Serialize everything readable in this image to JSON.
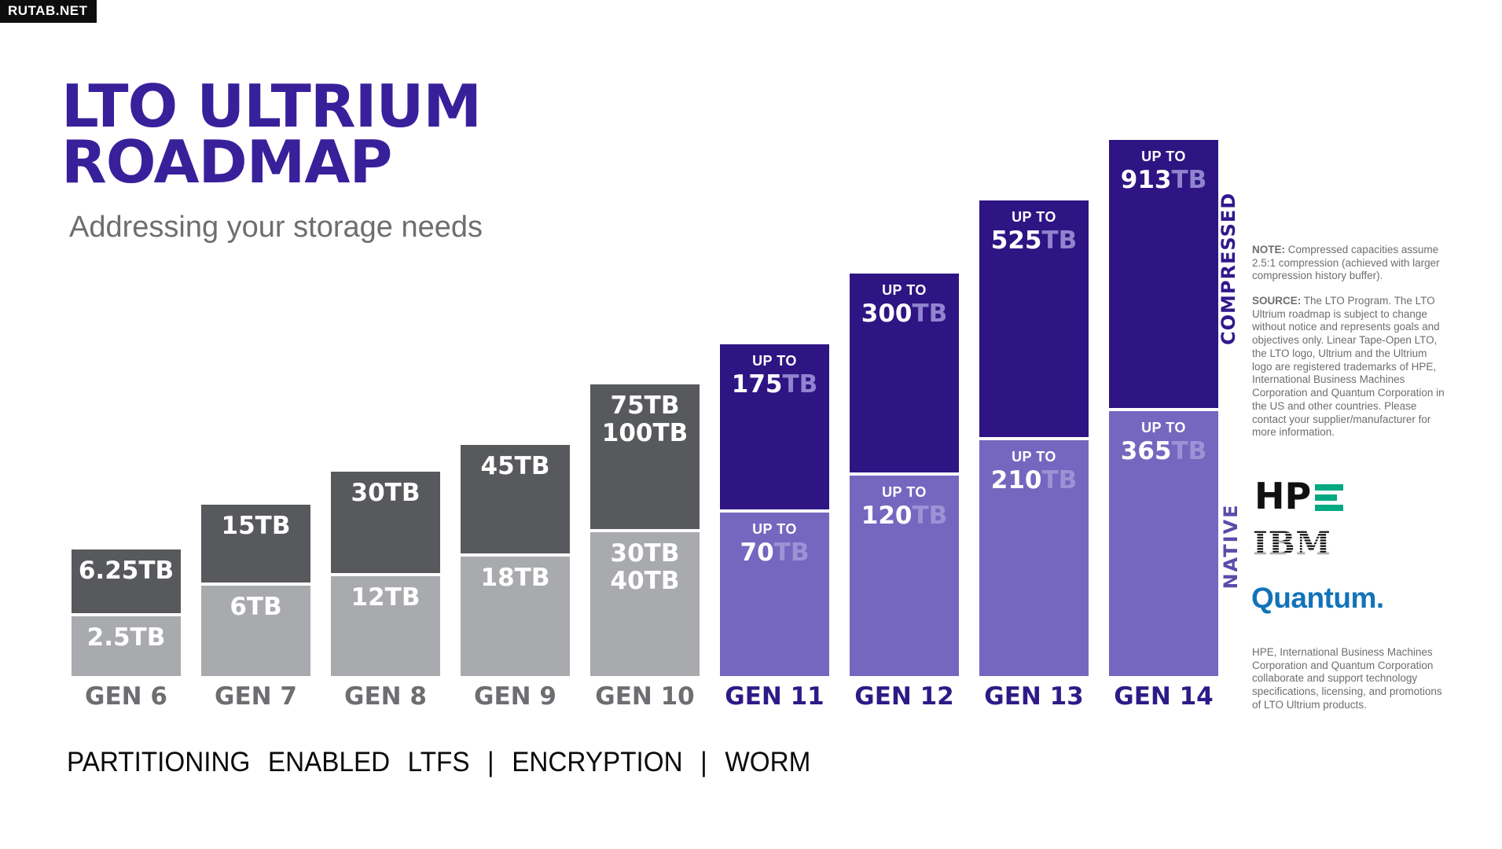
{
  "watermark": "RUTAB.NET",
  "header": {
    "title_line1": "LTO ULTRIUM",
    "title_line2": "ROADMAP",
    "subtitle": "Addressing your storage needs"
  },
  "axis_labels": {
    "compressed": "COMPRESSED",
    "native": "NATIVE"
  },
  "chart_data": {
    "type": "bar",
    "title": "LTO ULTRIUM ROADMAP",
    "subtitle": "Addressing your storage needs",
    "unit": "TB",
    "legend_position": "right-vertical",
    "grid": false,
    "categories": [
      "GEN 6",
      "GEN 7",
      "GEN 8",
      "GEN 9",
      "GEN 10",
      "GEN 11",
      "GEN 12",
      "GEN 13",
      "GEN 14"
    ],
    "series": [
      {
        "name": "Native (TB)",
        "values": [
          2.5,
          6,
          12,
          18,
          40,
          70,
          120,
          210,
          365
        ]
      },
      {
        "name": "Compressed (TB)",
        "values": [
          6.25,
          15,
          30,
          45,
          100,
          175,
          300,
          525,
          913
        ]
      }
    ],
    "value_labels": {
      "native": [
        "2.5TB",
        "6TB",
        "12TB",
        "18TB",
        "30TB 40TB",
        "UP TO 70TB",
        "UP TO 120TB",
        "UP TO 210TB",
        "UP TO 365TB"
      ],
      "compressed": [
        "6.25TB",
        "15TB",
        "30TB",
        "45TB",
        "75TB 100TB",
        "UP TO 175TB",
        "UP TO 300TB",
        "UP TO 525TB",
        "UP TO 913TB"
      ]
    },
    "bars": [
      {
        "gen": "GEN 6",
        "theme": "gray",
        "comp_h": 81,
        "native_h": 76,
        "comp_label": [
          "6.25TB"
        ],
        "native_label": [
          "2.5TB"
        ]
      },
      {
        "gen": "GEN 7",
        "theme": "gray",
        "comp_h": 99,
        "native_h": 115,
        "comp_label": [
          "15TB"
        ],
        "native_label": [
          "6TB"
        ]
      },
      {
        "gen": "GEN 8",
        "theme": "gray",
        "comp_h": 129,
        "native_h": 127,
        "comp_label": [
          "30TB"
        ],
        "native_label": [
          "12TB"
        ]
      },
      {
        "gen": "GEN 9",
        "theme": "gray",
        "comp_h": 138,
        "native_h": 152,
        "comp_label": [
          "45TB"
        ],
        "native_label": [
          "18TB"
        ]
      },
      {
        "gen": "GEN 10",
        "theme": "gray",
        "comp_h": 184,
        "native_h": 183,
        "comp_label": [
          "75TB",
          "100TB"
        ],
        "native_label": [
          "30TB",
          "40TB"
        ]
      },
      {
        "gen": "GEN 11",
        "theme": "purple",
        "comp_h": 210,
        "native_h": 208,
        "up_to": "UP TO",
        "unit": "TB",
        "comp_value": "175",
        "native_value": "70"
      },
      {
        "gen": "GEN 12",
        "theme": "purple",
        "comp_h": 253,
        "native_h": 255,
        "up_to": "UP TO",
        "unit": "TB",
        "comp_value": "300",
        "native_value": "120"
      },
      {
        "gen": "GEN 13",
        "theme": "purple",
        "comp_h": 301,
        "native_h": 300,
        "up_to": "UP TO",
        "unit": "TB",
        "comp_value": "525",
        "native_value": "210"
      },
      {
        "gen": "GEN 14",
        "theme": "purple",
        "comp_h": 341,
        "native_h": 337,
        "up_to": "UP TO",
        "unit": "TB",
        "comp_value": "913",
        "native_value": "365"
      }
    ]
  },
  "notes": {
    "note_label": "NOTE:",
    "note_text": "Compressed capacities assume 2.5:1 compression (achieved with larger compression history buffer).",
    "source_label": "SOURCE:",
    "source_text": "The LTO Program. The LTO Ultrium roadmap is subject to change without notice and represents goals and objectives only. Linear Tape-Open LTO, the LTO logo, Ultrium and the Ultrium logo are registered trademarks of HPE, International Business Machines Corporation and Quantum Corporation in the US and other countries. Please contact your supplier/manufacturer for more information.",
    "legal_text": "HPE, International Business Machines Corporation and Quantum Corporation collaborate and support technology specifications, licensing, and promotions of LTO Ultrium products."
  },
  "logos": {
    "hpe_text": "HP",
    "ibm_text": "IBM",
    "quantum_text": "Quantum."
  },
  "footer": {
    "features": "PARTITIONING ENABLED LTFS | ENCRYPTION | WORM"
  },
  "colors": {
    "title_indigo": "#38209b",
    "compressed_purple": "#2e1583",
    "native_purple": "#7567bf",
    "compressed_gray": "#58595c",
    "native_gray": "#a8aaad",
    "gen_label_gray": "#6d6e71",
    "gen_label_purple": "#2e1a87",
    "tb_suffix_on_compressed": "#9184cf",
    "tb_suffix_on_native": "#9e92d6",
    "hpe_green": "#01a982",
    "quantum_blue": "#1273b9",
    "side_text_gray": "#6d6e71"
  }
}
